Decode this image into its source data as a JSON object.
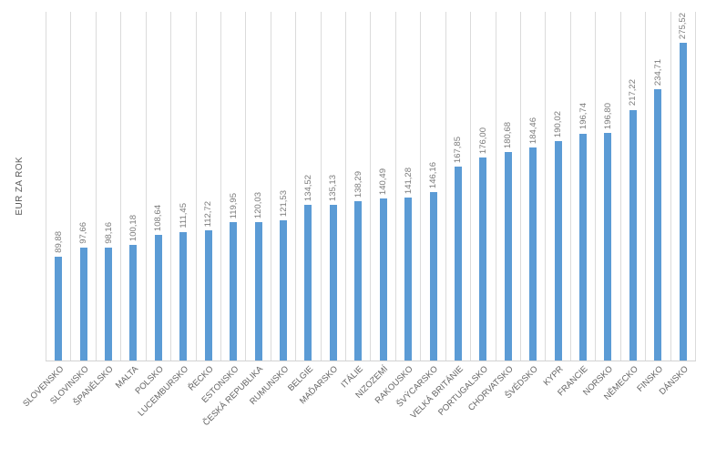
{
  "chart_data": {
    "type": "bar",
    "title": "",
    "xlabel": "",
    "ylabel": "EUR ZA ROK",
    "legend": null,
    "grid": "vertical-category-gridlines",
    "ylim": [
      0,
      302
    ],
    "bar_color": "#5b9bd5",
    "gridline_color": "#dbdbdb",
    "axis_line_color": "#d2d2d2",
    "value_label_color": "#7b7b7b",
    "category_label_color": "#666666",
    "categories": [
      "SLOVENSKO",
      "SLOVINSKO",
      "ŠPANĚLSKO",
      "MALTA",
      "POLSKO",
      "LUCEMBURSKO",
      "ŘECKO",
      "ESTONSKO",
      "ČESKÁ REPUBLIKA",
      "RUMUNSKO",
      "BELGIE",
      "MAĎARSKO",
      "ITÁLIE",
      "NIZOZEMÍ",
      "RAKOUSKO",
      "ŠVÝCARSKO",
      "VELKÁ BRITÁNIE",
      "PORTUGALSKO",
      "CHORVATSKO",
      "ŠVÉDSKO",
      "KYPR",
      "FRANCIE",
      "NORSKO",
      "NĚMECKO",
      "FINSKO",
      "DÁNSKO"
    ],
    "values": [
      89.88,
      97.66,
      98.16,
      100.18,
      108.64,
      111.45,
      112.72,
      119.95,
      120.03,
      121.53,
      134.52,
      135.13,
      138.29,
      140.49,
      141.28,
      146.16,
      167.85,
      176.0,
      180.68,
      184.46,
      190.02,
      196.74,
      196.8,
      217.22,
      234.71,
      275.52
    ],
    "value_labels": [
      "89,88",
      "97,66",
      "98,16",
      "100,18",
      "108,64",
      "111,45",
      "112,72",
      "119,95",
      "120,03",
      "121,53",
      "134,52",
      "135,13",
      "138,29",
      "140,49",
      "141,28",
      "146,16",
      "167,85",
      "176,00",
      "180,68",
      "184,46",
      "190,02",
      "196,74",
      "196,80",
      "217,22",
      "234,71",
      "275,52"
    ]
  }
}
